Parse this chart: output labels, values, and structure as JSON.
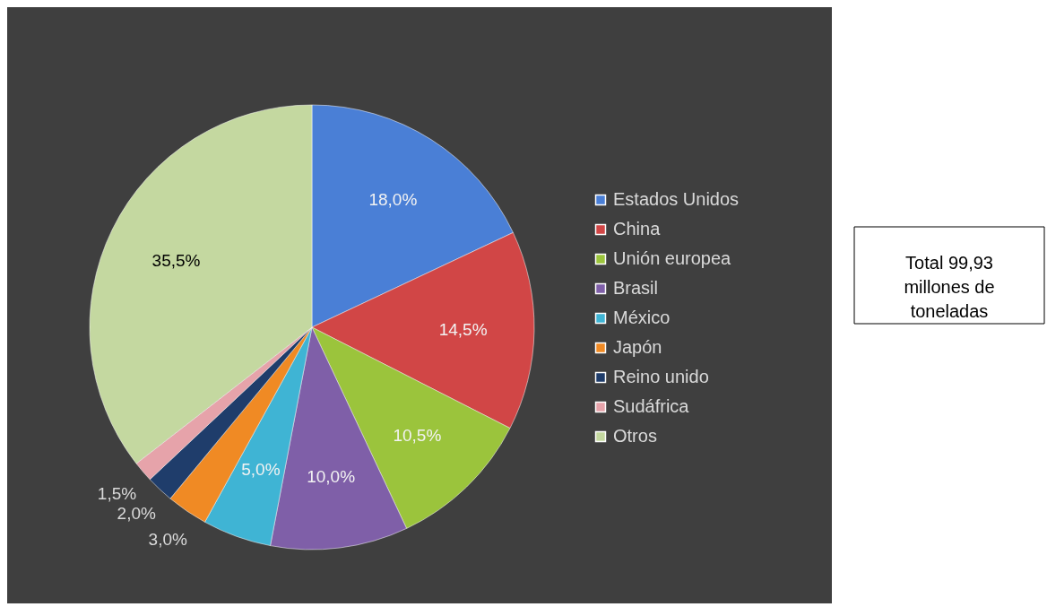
{
  "chart_data": {
    "type": "pie",
    "categories": [
      "Estados Unidos",
      "China",
      "Unión europea",
      "Brasil",
      "México",
      "Japón",
      "Reino unido",
      "Sudáfrica",
      "Otros"
    ],
    "values": [
      18.0,
      14.5,
      10.5,
      10.0,
      5.0,
      3.0,
      2.0,
      1.5,
      35.5
    ],
    "colors": [
      "#4a7fd6",
      "#d14646",
      "#9bc43c",
      "#7f5fa8",
      "#3fb4d4",
      "#f08a24",
      "#1f3d6b",
      "#e6a3aa",
      "#c4d8a0"
    ],
    "value_labels": [
      "18,0%",
      "14,5%",
      "10,5%",
      "10,0%",
      "5,0%",
      "3,0%",
      "2,0%",
      "1,5%",
      "35,5%"
    ],
    "legend": "right",
    "annotations": [
      "Total 99,93 millones de toneladas"
    ]
  }
}
